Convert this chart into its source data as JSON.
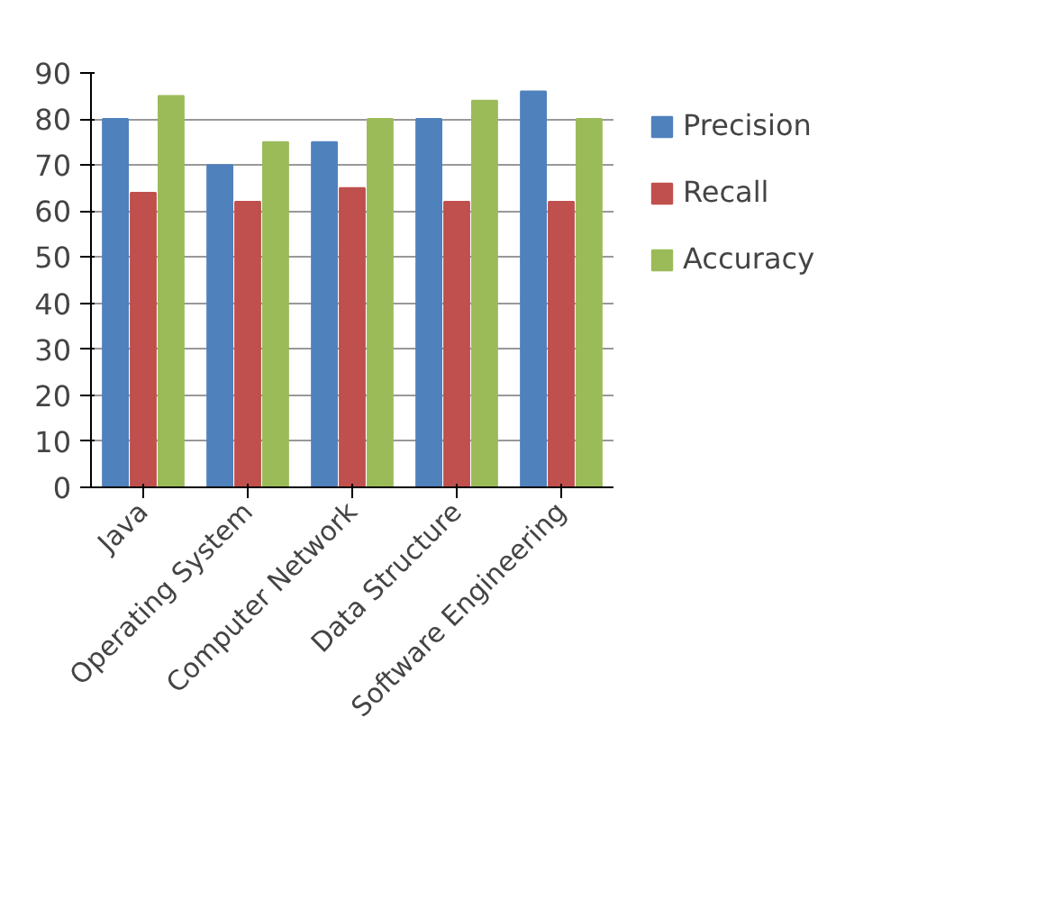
{
  "chart_data": {
    "type": "bar",
    "categories": [
      "Java",
      "Operating System",
      "Computer Network",
      "Data Structure",
      "Software Engineering"
    ],
    "series": [
      {
        "name": "Precision",
        "color": "#4f81bd",
        "values": [
          80,
          70,
          75,
          80,
          86
        ]
      },
      {
        "name": "Recall",
        "color": "#c0504d",
        "values": [
          64,
          62,
          65,
          62,
          62
        ]
      },
      {
        "name": "Accuracy",
        "color": "#9bbb59",
        "values": [
          85,
          75,
          80,
          84,
          80
        ]
      }
    ],
    "ylim": [
      0,
      90
    ],
    "yticks": [
      0,
      10,
      20,
      30,
      40,
      50,
      60,
      70,
      80,
      90
    ],
    "grid": "y",
    "legend": "right"
  }
}
